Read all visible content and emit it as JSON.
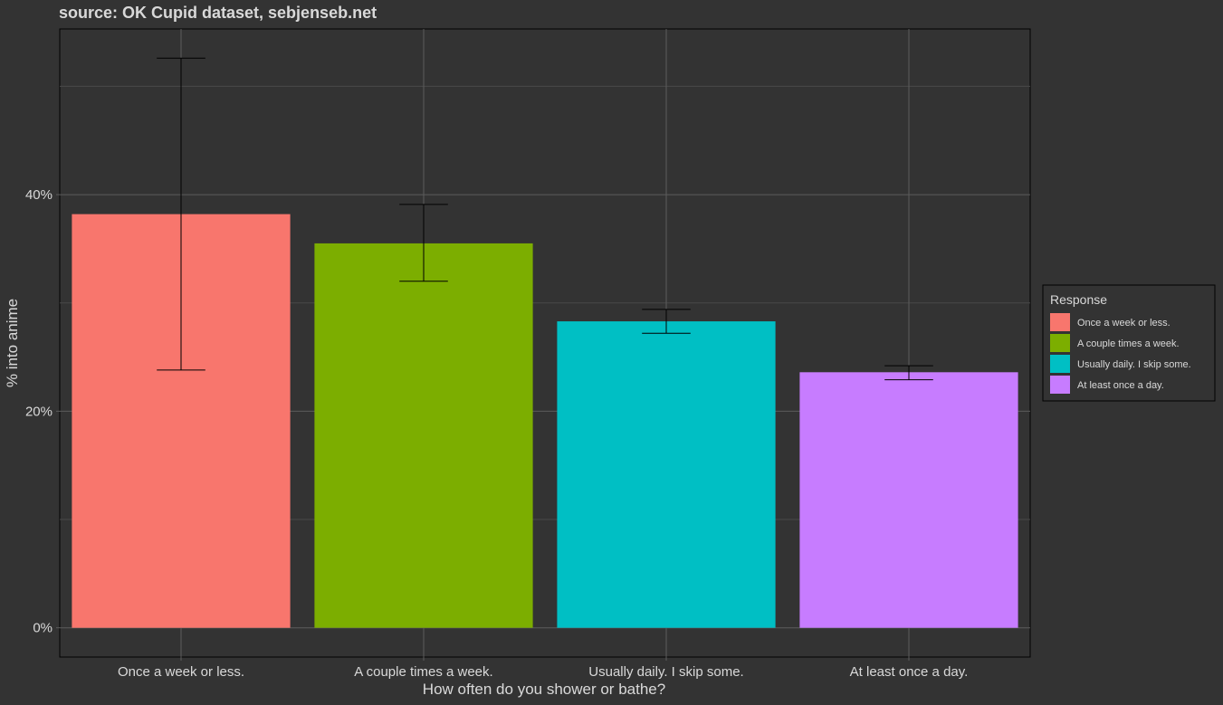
{
  "subtitle": "source: OK Cupid dataset, sebjenseb.net",
  "chart_data": {
    "type": "bar",
    "title": "",
    "subtitle": "source: OK Cupid dataset, sebjenseb.net",
    "xlabel": "How often do you shower or bathe?",
    "ylabel": "% into anime",
    "categories": [
      "Once a week or less.",
      "A couple times a week.",
      "Usually daily.  I skip some.",
      "At least once a day."
    ],
    "values": [
      38.2,
      35.5,
      28.3,
      23.6
    ],
    "error_bars": [
      {
        "low": 23.8,
        "high": 52.6
      },
      {
        "low": 32.0,
        "high": 39.1
      },
      {
        "low": 27.2,
        "high": 29.4
      },
      {
        "low": 22.9,
        "high": 24.2
      }
    ],
    "colors": [
      "#F8766D",
      "#7CAE00",
      "#00BFC4",
      "#C77CFF"
    ],
    "ylim": [
      -2.7,
      55.3
    ],
    "y_major_ticks": [
      0,
      20,
      40
    ],
    "y_minor_ticks": [
      10,
      30,
      50
    ],
    "y_tick_labels": [
      "0%",
      "20%",
      "40%"
    ],
    "grid": true,
    "legend": {
      "title": "Response",
      "position": "right",
      "entries": [
        "Once a week or less.",
        "A couple times a week.",
        "Usually daily.  I skip some.",
        "At least once a day."
      ]
    }
  }
}
